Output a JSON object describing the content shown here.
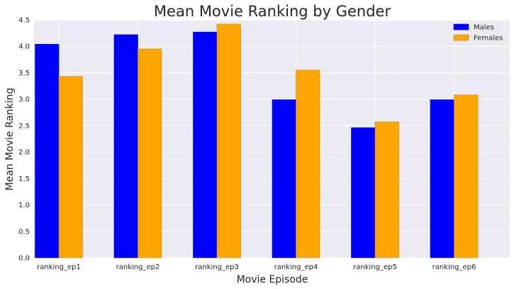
{
  "chart_data": {
    "type": "bar",
    "title": "Mean Movie Ranking by Gender",
    "xlabel": "Movie Episode",
    "ylabel": "Mean Movie Ranking",
    "categories": [
      "ranking_ep1",
      "ranking_ep2",
      "ranking_ep3",
      "ranking_ep4",
      "ranking_ep5",
      "ranking_ep6"
    ],
    "series": [
      {
        "name": "Males",
        "color": "#0000ff",
        "values": [
          4.04,
          4.22,
          4.27,
          2.99,
          2.46,
          2.99
        ]
      },
      {
        "name": "Females",
        "color": "#ffa500",
        "values": [
          3.43,
          3.95,
          4.42,
          3.55,
          2.57,
          3.08
        ]
      }
    ],
    "ylim": [
      0,
      4.5
    ],
    "yticks": [
      0.0,
      0.5,
      1.0,
      1.5,
      2.0,
      2.5,
      3.0,
      3.5,
      4.0,
      4.5
    ],
    "ytick_labels": [
      "0.0",
      "0.5",
      "1.0",
      "1.5",
      "2.0",
      "2.5",
      "3.0",
      "3.5",
      "4.0",
      "4.5"
    ],
    "grid": true,
    "legend_position": "top-right",
    "background_color": "#eaeaf2",
    "grid_color": "#ffffff"
  }
}
